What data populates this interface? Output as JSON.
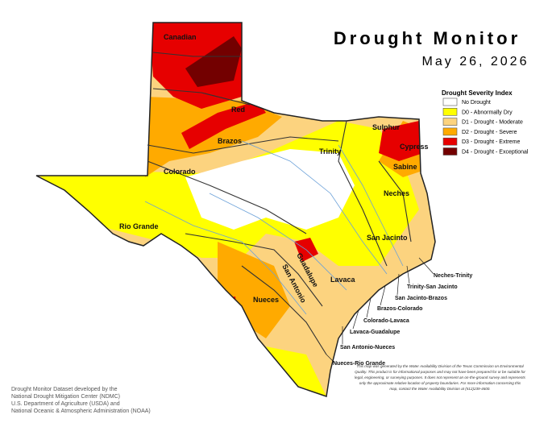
{
  "header": {
    "title": "Drought Monitor",
    "date": "May 26, 2026"
  },
  "legend": {
    "title": "Drought Severity Index",
    "items": [
      {
        "label": "No Drought",
        "color": "#ffffff"
      },
      {
        "label": "D0 - Abnormally Dry",
        "color": "#ffff00"
      },
      {
        "label": "D1 - Drought - Moderate",
        "color": "#fcd37f"
      },
      {
        "label": "D2 - Drought - Severe",
        "color": "#ffaa00"
      },
      {
        "label": "D3 - Drought - Extreme",
        "color": "#e60000"
      },
      {
        "label": "D4 - Drought - Exceptional",
        "color": "#730000"
      }
    ]
  },
  "basins": [
    "Canadian",
    "Red",
    "Brazos",
    "Colorado",
    "Rio Grande",
    "Sulphur",
    "Cypress",
    "Trinity",
    "Sabine",
    "Neches",
    "San Jacinto",
    "Guadalupe",
    "San Antonio",
    "Lavaca",
    "Nueces"
  ],
  "coastal_basins": [
    "Neches-Trinity",
    "Trinity-San Jacinto",
    "San Jacinto-Brazos",
    "Brazos-Colorado",
    "Colorado-Lavaca",
    "Lavaca-Guadalupe",
    "San Antonio-Nueces",
    "Nueces-Rio Grande"
  ],
  "credits": [
    "Drought Monitor Dataset developed by the",
    "National Drought Mitigation Center (NDMC)",
    "U.S. Department of Agriculture (USDA) and",
    "National Oceanic & Atmospheric Administration (NOAA)"
  ],
  "disclaimer": [
    "This map was generated by the Water Availability Division of the Texas Commission on Environmental",
    "Quality. This product is for informational purposes and may not have been prepared for or be suitable for",
    "legal, engineering, or surveying purposes. It does not represent an on-the-ground survey and represents",
    "only the approximate relative location of property boundaries. For more information concerning this",
    "map, contact the Water Availability Division at (512)239-4600."
  ]
}
